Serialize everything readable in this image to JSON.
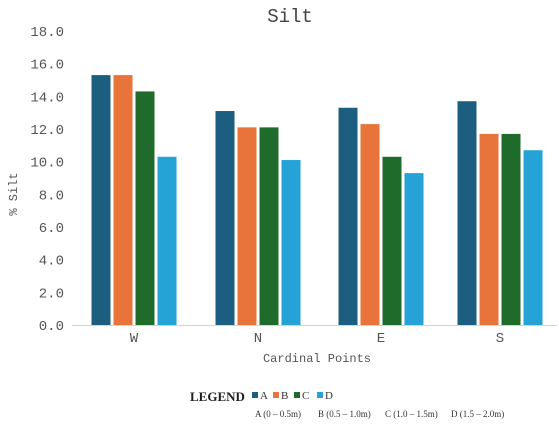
{
  "chart_data": {
    "type": "bar",
    "title": "Silt",
    "xlabel": "Cardinal Points",
    "ylabel": "% Silt",
    "categories": [
      "W",
      "N",
      "E",
      "S"
    ],
    "ylim": [
      0,
      18
    ],
    "yticks": [
      "0.0",
      "2.0",
      "4.0",
      "6.0",
      "8.0",
      "10.0",
      "12.0",
      "14.0",
      "16.0",
      "18.0"
    ],
    "grid": false,
    "legend_position": "bottom",
    "series": [
      {
        "name": "A",
        "color": "#1b5e80",
        "values": [
          15.3,
          13.1,
          13.3,
          13.7
        ]
      },
      {
        "name": "B",
        "color": "#e8743b",
        "values": [
          15.3,
          12.1,
          12.3,
          11.7
        ]
      },
      {
        "name": "C",
        "color": "#1f6b2c",
        "values": [
          14.3,
          12.1,
          10.3,
          11.7
        ]
      },
      {
        "name": "D",
        "color": "#25a3d6",
        "values": [
          10.3,
          10.1,
          9.3,
          10.7
        ]
      }
    ]
  },
  "legend": {
    "heading": "LEGEND",
    "descriptions": [
      "A (0 – 0.5m)",
      "B (0.5 – 1.0m)",
      "C (1.0 – 1.5m)",
      "D (1.5 – 2.0m)"
    ]
  }
}
